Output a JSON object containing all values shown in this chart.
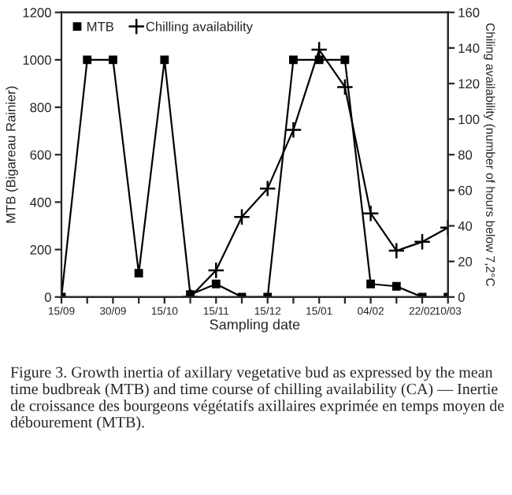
{
  "chart_data": {
    "type": "line",
    "xlabel": "Sampling date",
    "ylabel": "MTB (Bigareau Rainier)",
    "y2label": "Chiling availability (number of hours below 7,2°C",
    "categories": [
      "15/09",
      null,
      "30/09",
      null,
      "15/10",
      null,
      "15/11",
      null,
      "15/12",
      null,
      "15/01",
      null,
      "04/02",
      null,
      "22/02",
      "10/03"
    ],
    "series": [
      {
        "name": "MTB",
        "color": "#000000",
        "marker": "square",
        "values": [
          0,
          1000,
          1000,
          100,
          1000,
          10,
          55,
          0,
          0,
          1000,
          1000,
          1000,
          55,
          45,
          0,
          0
        ]
      },
      {
        "name": "Chilling availability",
        "color": "#000000",
        "marker": "cross",
        "axis": "y2",
        "values": [
          null,
          null,
          null,
          null,
          null,
          0,
          15,
          45,
          61,
          94,
          139,
          118,
          47,
          26,
          31,
          39
        ]
      }
    ],
    "ylim": [
      0,
      1200
    ],
    "yticks": [
      0,
      200,
      400,
      600,
      800,
      1000,
      1200
    ],
    "y2lim": [
      0,
      160
    ],
    "y2ticks": [
      0,
      20,
      40,
      60,
      80,
      100,
      120,
      140,
      160
    ],
    "legend": "top left",
    "grid": false,
    "annotations": [
      "Figure 3. Growth inertia of axillary vegetative bud as expressed by the mean time budbreak (MTB) and time course of chilling availability (CA) — Inertie de croissance des bourgeons végétatifs axillaires exprimée en temps moyen de débourement (MTB)."
    ]
  }
}
